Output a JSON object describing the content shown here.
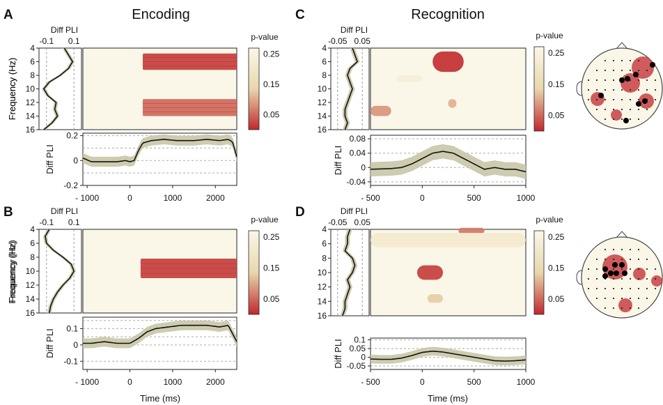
{
  "figure": {
    "column_titles": [
      "Encoding",
      "Recognition"
    ],
    "time_label": "Time (ms)",
    "freq_label": "Frequency (Hz)",
    "diff_label": "Diff PLI",
    "pvalue_label": "p-value"
  },
  "colors": {
    "curve": "#111111",
    "band": "#c9c6a6",
    "cmap_low": "#c1272d",
    "cmap_mid": "#e8d6ad",
    "cmap_high": "#fbf7e8"
  },
  "chart_data": [
    {
      "panel": "A",
      "type": "heatmap",
      "condition": "Encoding",
      "side_ticks": [
        "-0.1",
        "0.1"
      ],
      "freq_ticks": [
        4,
        6,
        8,
        10,
        12,
        14,
        16
      ],
      "time_ticks": [
        -1000,
        0,
        1000,
        2000
      ],
      "xlim": [
        -1100,
        2500
      ],
      "colorbar_ticks": [
        "0.25",
        "0.15",
        "0.05"
      ],
      "pvalue_blobs": [
        {
          "t": [
            300,
            2500
          ],
          "f": [
            4.8,
            7.2
          ],
          "p": 0.02
        },
        {
          "t": [
            300,
            2500
          ],
          "f": [
            11.5,
            14.0
          ],
          "p": 0.05
        }
      ],
      "freq_profile": {
        "f": [
          4,
          5,
          6,
          7,
          8,
          9,
          10,
          11,
          12,
          13,
          14,
          15,
          16
        ],
        "v": [
          0.03,
          0.06,
          0.09,
          0.06,
          0.0,
          -0.08,
          -0.12,
          -0.09,
          -0.03,
          -0.04,
          -0.02,
          -0.06,
          -0.12
        ]
      },
      "diff_pli": {
        "ylim": [
          -0.2,
          0.22
        ],
        "yticks": [
          "0.2",
          "0",
          "-0.2"
        ],
        "grid": [
          0.2,
          0.1,
          0,
          -0.1
        ],
        "t": [
          -1100,
          -900,
          -600,
          -300,
          -100,
          0,
          100,
          200,
          300,
          500,
          800,
          1100,
          1500,
          1800,
          2100,
          2300,
          2400,
          2500
        ],
        "v": [
          0.02,
          -0.01,
          -0.01,
          -0.01,
          0.0,
          -0.01,
          0.0,
          0.08,
          0.14,
          0.16,
          0.17,
          0.16,
          0.16,
          0.17,
          0.16,
          0.17,
          0.15,
          0.03
        ],
        "band": 0.04
      }
    },
    {
      "panel": "B",
      "type": "heatmap",
      "condition": "Encoding",
      "side_ticks": [
        "-0.1",
        "0.1"
      ],
      "freq_ticks": [
        4,
        6,
        8,
        10,
        12,
        14,
        16
      ],
      "time_ticks": [
        -1000,
        0,
        1000,
        2000
      ],
      "xlim": [
        -1100,
        2500
      ],
      "colorbar_ticks": [
        "0.25",
        "0.15",
        "0.05"
      ],
      "pvalue_blobs": [
        {
          "t": [
            250,
            2500
          ],
          "f": [
            8.2,
            11.0
          ],
          "p": 0.02
        }
      ],
      "freq_profile": {
        "f": [
          4,
          5,
          6,
          7,
          8,
          9,
          10,
          11,
          12,
          13,
          14,
          15,
          16
        ],
        "v": [
          -0.08,
          -0.11,
          -0.1,
          -0.05,
          0.02,
          0.08,
          0.1,
          0.07,
          0.02,
          -0.02,
          -0.05,
          -0.07,
          -0.08
        ]
      },
      "diff_pli": {
        "ylim": [
          -0.15,
          0.17
        ],
        "yticks": [
          "0.1",
          "0",
          "-0.1"
        ],
        "grid": [
          0.15,
          0.1,
          0.05,
          0,
          -0.1
        ],
        "t": [
          -1100,
          -900,
          -600,
          -300,
          0,
          200,
          400,
          600,
          900,
          1200,
          1500,
          1800,
          2100,
          2300,
          2500
        ],
        "v": [
          0.01,
          0.01,
          0.02,
          0.01,
          0.01,
          0.04,
          0.08,
          0.1,
          0.11,
          0.12,
          0.12,
          0.12,
          0.11,
          0.12,
          0.02
        ],
        "band": 0.03
      }
    },
    {
      "panel": "C",
      "type": "heatmap",
      "condition": "Recognition",
      "side_ticks": [
        "-0.05",
        "0.05"
      ],
      "freq_ticks": [
        4,
        6,
        8,
        10,
        12,
        14,
        16
      ],
      "time_ticks": [
        -500,
        0,
        500,
        1000
      ],
      "xlim": [
        -500,
        1000
      ],
      "colorbar_ticks": [
        "0.25",
        "0.15",
        "0.05"
      ],
      "pvalue_blobs": [
        {
          "t": [
            100,
            400
          ],
          "f": [
            4.5,
            7.5
          ],
          "p": 0.01
        },
        {
          "t": [
            -500,
            -300
          ],
          "f": [
            12.5,
            14.0
          ],
          "p": 0.08
        },
        {
          "t": [
            250,
            330
          ],
          "f": [
            11.5,
            12.8
          ],
          "p": 0.1
        },
        {
          "t": [
            -250,
            0
          ],
          "f": [
            8.0,
            9.0
          ],
          "p": 0.22
        }
      ],
      "freq_profile": {
        "f": [
          4,
          5,
          6,
          7,
          8,
          9,
          10,
          11,
          12,
          13,
          14,
          15,
          16
        ],
        "v": [
          0.01,
          0.02,
          0.03,
          0.0,
          -0.01,
          0.0,
          0.01,
          0.0,
          -0.01,
          -0.02,
          -0.02,
          -0.01,
          -0.02
        ]
      },
      "diff_pli": {
        "ylim": [
          -0.05,
          0.09
        ],
        "yticks": [
          "0.08",
          "0.04",
          "0",
          "-0.04"
        ],
        "grid": [
          0.08,
          0.04,
          0,
          -0.04
        ],
        "t": [
          -500,
          -400,
          -300,
          -200,
          -100,
          0,
          100,
          200,
          300,
          400,
          500,
          600,
          700,
          800,
          900,
          1000
        ],
        "v": [
          -0.005,
          -0.004,
          -0.003,
          0.0,
          0.01,
          0.025,
          0.04,
          0.045,
          0.04,
          0.025,
          0.01,
          -0.005,
          0.0,
          -0.005,
          -0.005,
          -0.012
        ],
        "band": 0.02
      },
      "topomap": {
        "electrodes": 56,
        "highlighted": 8
      }
    },
    {
      "panel": "D",
      "type": "heatmap",
      "condition": "Recognition",
      "side_ticks": [
        "-0.05",
        "0.05"
      ],
      "freq_ticks": [
        4,
        6,
        8,
        10,
        12,
        14,
        16
      ],
      "time_ticks": [
        -500,
        0,
        500,
        1000
      ],
      "xlim": [
        -500,
        1000
      ],
      "colorbar_ticks": [
        "0.25",
        "0.15",
        "0.05"
      ],
      "pvalue_blobs": [
        {
          "t": [
            -50,
            200
          ],
          "f": [
            9.0,
            11.0
          ],
          "p": 0.02
        },
        {
          "t": [
            350,
            600
          ],
          "f": [
            3.8,
            4.6
          ],
          "p": 0.06
        },
        {
          "t": [
            50,
            200
          ],
          "f": [
            13.0,
            14.2
          ],
          "p": 0.12
        },
        {
          "t": [
            -500,
            1000
          ],
          "f": [
            4.5,
            6.5
          ],
          "p": 0.2
        }
      ],
      "freq_profile": {
        "f": [
          4,
          5,
          6,
          7,
          8,
          9,
          10,
          11,
          12,
          13,
          14,
          15,
          16
        ],
        "v": [
          0.0,
          -0.01,
          -0.01,
          -0.02,
          0.01,
          0.02,
          0.01,
          -0.01,
          0.0,
          -0.01,
          -0.02,
          -0.02,
          -0.03
        ]
      },
      "diff_pli": {
        "ylim": [
          -0.07,
          0.11
        ],
        "yticks": [
          "0.1",
          "0.05",
          "0",
          "-0.05"
        ],
        "grid": [
          0.1,
          0.05,
          0,
          -0.05
        ],
        "t": [
          -500,
          -400,
          -300,
          -200,
          -100,
          0,
          100,
          200,
          300,
          400,
          500,
          600,
          700,
          800,
          900,
          1000
        ],
        "v": [
          -0.01,
          -0.012,
          -0.012,
          -0.005,
          0.01,
          0.028,
          0.035,
          0.03,
          0.02,
          0.01,
          0.0,
          -0.01,
          -0.02,
          -0.022,
          -0.02,
          -0.015
        ],
        "band": 0.025
      },
      "topomap": {
        "electrodes": 56,
        "highlighted": 7
      }
    }
  ]
}
